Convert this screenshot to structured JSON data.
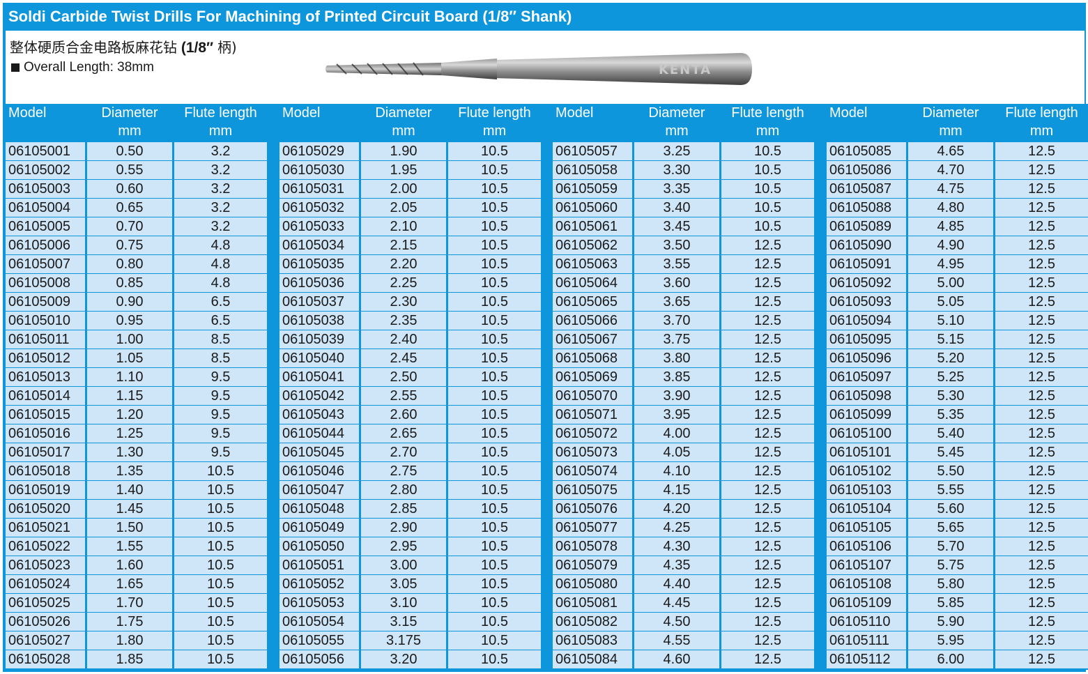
{
  "title": "Soldi Carbide Twist Drills For Machining of Printed Circuit Board (1/8″ Shank)",
  "subtitle": {
    "chinese": "整体硬质合金电路板麻花钻",
    "shank": "(1/8″",
    "shank_cn": "柄)"
  },
  "overall_length": "Overall Length: 38mm",
  "drill_image": {
    "brand_text": "KENTA"
  },
  "headers": {
    "model": "Model",
    "diameter": "Diameter",
    "diameter_unit": "mm",
    "flute": "Flute length",
    "flute_unit": "mm"
  },
  "tables": [
    {
      "rows": [
        [
          "06105001",
          "0.50",
          "3.2"
        ],
        [
          "06105002",
          "0.55",
          "3.2"
        ],
        [
          "06105003",
          "0.60",
          "3.2"
        ],
        [
          "06105004",
          "0.65",
          "3.2"
        ],
        [
          "06105005",
          "0.70",
          "3.2"
        ],
        [
          "06105006",
          "0.75",
          "4.8"
        ],
        [
          "06105007",
          "0.80",
          "4.8"
        ],
        [
          "06105008",
          "0.85",
          "4.8"
        ],
        [
          "06105009",
          "0.90",
          "6.5"
        ],
        [
          "06105010",
          "0.95",
          "6.5"
        ],
        [
          "06105011",
          "1.00",
          "8.5"
        ],
        [
          "06105012",
          "1.05",
          "8.5"
        ],
        [
          "06105013",
          "1.10",
          "9.5"
        ],
        [
          "06105014",
          "1.15",
          "9.5"
        ],
        [
          "06105015",
          "1.20",
          "9.5"
        ],
        [
          "06105016",
          "1.25",
          "9.5"
        ],
        [
          "06105017",
          "1.30",
          "9.5"
        ],
        [
          "06105018",
          "1.35",
          "10.5"
        ],
        [
          "06105019",
          "1.40",
          "10.5"
        ],
        [
          "06105020",
          "1.45",
          "10.5"
        ],
        [
          "06105021",
          "1.50",
          "10.5"
        ],
        [
          "06105022",
          "1.55",
          "10.5"
        ],
        [
          "06105023",
          "1.60",
          "10.5"
        ],
        [
          "06105024",
          "1.65",
          "10.5"
        ],
        [
          "06105025",
          "1.70",
          "10.5"
        ],
        [
          "06105026",
          "1.75",
          "10.5"
        ],
        [
          "06105027",
          "1.80",
          "10.5"
        ],
        [
          "06105028",
          "1.85",
          "10.5"
        ]
      ]
    },
    {
      "rows": [
        [
          "06105029",
          "1.90",
          "10.5"
        ],
        [
          "06105030",
          "1.95",
          "10.5"
        ],
        [
          "06105031",
          "2.00",
          "10.5"
        ],
        [
          "06105032",
          "2.05",
          "10.5"
        ],
        [
          "06105033",
          "2.10",
          "10.5"
        ],
        [
          "06105034",
          "2.15",
          "10.5"
        ],
        [
          "06105035",
          "2.20",
          "10.5"
        ],
        [
          "06105036",
          "2.25",
          "10.5"
        ],
        [
          "06105037",
          "2.30",
          "10.5"
        ],
        [
          "06105038",
          "2.35",
          "10.5"
        ],
        [
          "06105039",
          "2.40",
          "10.5"
        ],
        [
          "06105040",
          "2.45",
          "10.5"
        ],
        [
          "06105041",
          "2.50",
          "10.5"
        ],
        [
          "06105042",
          "2.55",
          "10.5"
        ],
        [
          "06105043",
          "2.60",
          "10.5"
        ],
        [
          "06105044",
          "2.65",
          "10.5"
        ],
        [
          "06105045",
          "2.70",
          "10.5"
        ],
        [
          "06105046",
          "2.75",
          "10.5"
        ],
        [
          "06105047",
          "2.80",
          "10.5"
        ],
        [
          "06105048",
          "2.85",
          "10.5"
        ],
        [
          "06105049",
          "2.90",
          "10.5"
        ],
        [
          "06105050",
          "2.95",
          "10.5"
        ],
        [
          "06105051",
          "3.00",
          "10.5"
        ],
        [
          "06105052",
          "3.05",
          "10.5"
        ],
        [
          "06105053",
          "3.10",
          "10.5"
        ],
        [
          "06105054",
          "3.15",
          "10.5"
        ],
        [
          "06105055",
          "3.175",
          "10.5"
        ],
        [
          "06105056",
          "3.20",
          "10.5"
        ]
      ]
    },
    {
      "rows": [
        [
          "06105057",
          "3.25",
          "10.5"
        ],
        [
          "06105058",
          "3.30",
          "10.5"
        ],
        [
          "06105059",
          "3.35",
          "10.5"
        ],
        [
          "06105060",
          "3.40",
          "10.5"
        ],
        [
          "06105061",
          "3.45",
          "10.5"
        ],
        [
          "06105062",
          "3.50",
          "12.5"
        ],
        [
          "06105063",
          "3.55",
          "12.5"
        ],
        [
          "06105064",
          "3.60",
          "12.5"
        ],
        [
          "06105065",
          "3.65",
          "12.5"
        ],
        [
          "06105066",
          "3.70",
          "12.5"
        ],
        [
          "06105067",
          "3.75",
          "12.5"
        ],
        [
          "06105068",
          "3.80",
          "12.5"
        ],
        [
          "06105069",
          "3.85",
          "12.5"
        ],
        [
          "06105070",
          "3.90",
          "12.5"
        ],
        [
          "06105071",
          "3.95",
          "12.5"
        ],
        [
          "06105072",
          "4.00",
          "12.5"
        ],
        [
          "06105073",
          "4.05",
          "12.5"
        ],
        [
          "06105074",
          "4.10",
          "12.5"
        ],
        [
          "06105075",
          "4.15",
          "12.5"
        ],
        [
          "06105076",
          "4.20",
          "12.5"
        ],
        [
          "06105077",
          "4.25",
          "12.5"
        ],
        [
          "06105078",
          "4.30",
          "12.5"
        ],
        [
          "06105079",
          "4.35",
          "12.5"
        ],
        [
          "06105080",
          "4.40",
          "12.5"
        ],
        [
          "06105081",
          "4.45",
          "12.5"
        ],
        [
          "06105082",
          "4.50",
          "12.5"
        ],
        [
          "06105083",
          "4.55",
          "12.5"
        ],
        [
          "06105084",
          "4.60",
          "12.5"
        ]
      ]
    },
    {
      "rows": [
        [
          "06105085",
          "4.65",
          "12.5"
        ],
        [
          "06105086",
          "4.70",
          "12.5"
        ],
        [
          "06105087",
          "4.75",
          "12.5"
        ],
        [
          "06105088",
          "4.80",
          "12.5"
        ],
        [
          "06105089",
          "4.85",
          "12.5"
        ],
        [
          "06105090",
          "4.90",
          "12.5"
        ],
        [
          "06105091",
          "4.95",
          "12.5"
        ],
        [
          "06105092",
          "5.00",
          "12.5"
        ],
        [
          "06105093",
          "5.05",
          "12.5"
        ],
        [
          "06105094",
          "5.10",
          "12.5"
        ],
        [
          "06105095",
          "5.15",
          "12.5"
        ],
        [
          "06105096",
          "5.20",
          "12.5"
        ],
        [
          "06105097",
          "5.25",
          "12.5"
        ],
        [
          "06105098",
          "5.30",
          "12.5"
        ],
        [
          "06105099",
          "5.35",
          "12.5"
        ],
        [
          "06105100",
          "5.40",
          "12.5"
        ],
        [
          "06105101",
          "5.45",
          "12.5"
        ],
        [
          "06105102",
          "5.50",
          "12.5"
        ],
        [
          "06105103",
          "5.55",
          "12.5"
        ],
        [
          "06105104",
          "5.60",
          "12.5"
        ],
        [
          "06105105",
          "5.65",
          "12.5"
        ],
        [
          "06105106",
          "5.70",
          "12.5"
        ],
        [
          "06105107",
          "5.75",
          "12.5"
        ],
        [
          "06105108",
          "5.80",
          "12.5"
        ],
        [
          "06105109",
          "5.85",
          "12.5"
        ],
        [
          "06105110",
          "5.90",
          "12.5"
        ],
        [
          "06105111",
          "5.95",
          "12.5"
        ],
        [
          "06105112",
          "6.00",
          "12.5"
        ]
      ]
    }
  ]
}
